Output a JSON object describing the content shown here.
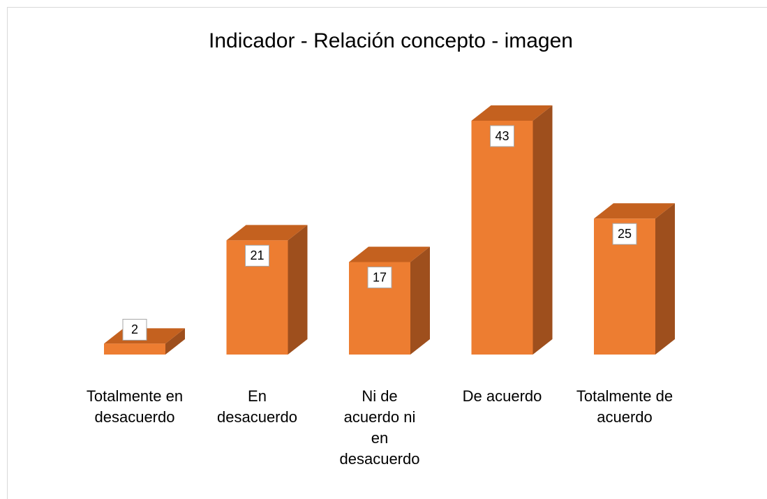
{
  "chart_data": {
    "type": "bar3d",
    "title": "Indicador - Relación concepto - imagen",
    "categories": [
      "Totalmente en desacuerdo",
      "En desacuerdo",
      "Ni de acuerdo ni en desacuerdo",
      "De acuerdo",
      "Totalmente de acuerdo"
    ],
    "values": [
      2,
      21,
      17,
      43,
      25
    ],
    "color": "#ed7d31"
  }
}
